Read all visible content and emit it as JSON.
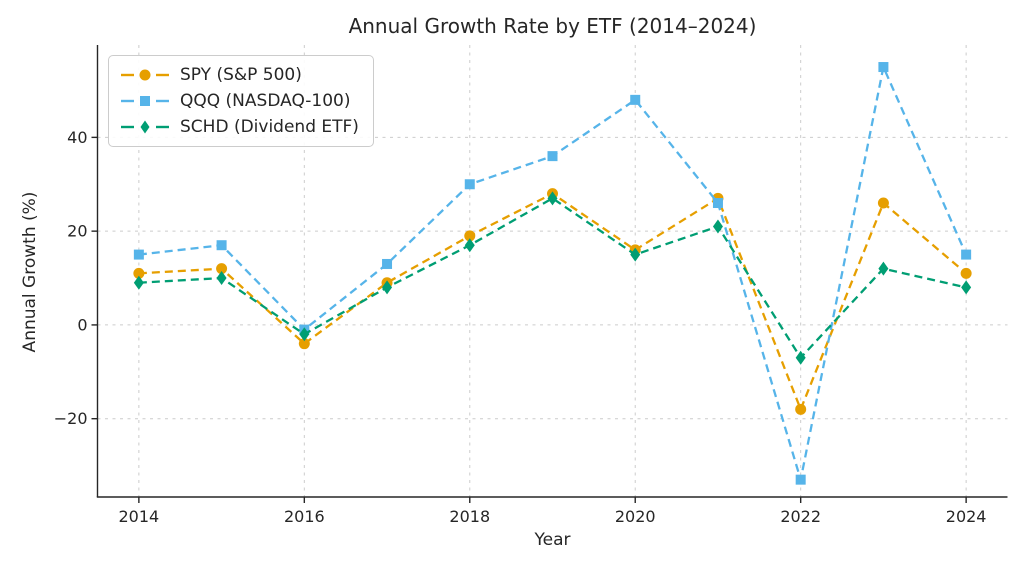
{
  "title": "Annual Growth Rate by ETF (2014–2024)",
  "chart_data": {
    "type": "line",
    "title": "Annual Growth Rate by ETF (2014–2024)",
    "xlabel": "Year",
    "ylabel": "Annual Growth (%)",
    "x": [
      2014,
      2015,
      2016,
      2017,
      2018,
      2019,
      2020,
      2021,
      2022,
      2023,
      2024
    ],
    "series": [
      {
        "name": "SPY (S&P 500)",
        "marker": "circle",
        "color": "#E69F00",
        "values": [
          11,
          12,
          -4,
          9,
          19,
          28,
          16,
          27,
          -18,
          26,
          11
        ]
      },
      {
        "name": "QQQ (NASDAQ-100)",
        "marker": "square",
        "color": "#56B4E9",
        "values": [
          15,
          17,
          -1,
          13,
          30,
          36,
          48,
          26,
          -33,
          55,
          15
        ]
      },
      {
        "name": "SCHD (Dividend ETF)",
        "marker": "diamond",
        "color": "#009E73",
        "values": [
          9,
          10,
          -2,
          8,
          17,
          27,
          15,
          21,
          -7,
          12,
          8
        ]
      }
    ],
    "xticks": [
      2014,
      2016,
      2018,
      2020,
      2022,
      2024
    ],
    "yticks": [
      -20,
      0,
      20,
      40
    ],
    "xlim": [
      2013.5,
      2024.5
    ],
    "ylim": [
      -36.7,
      59.7
    ],
    "grid": true,
    "line_style": "dashed",
    "legend_position": "upper-left"
  }
}
